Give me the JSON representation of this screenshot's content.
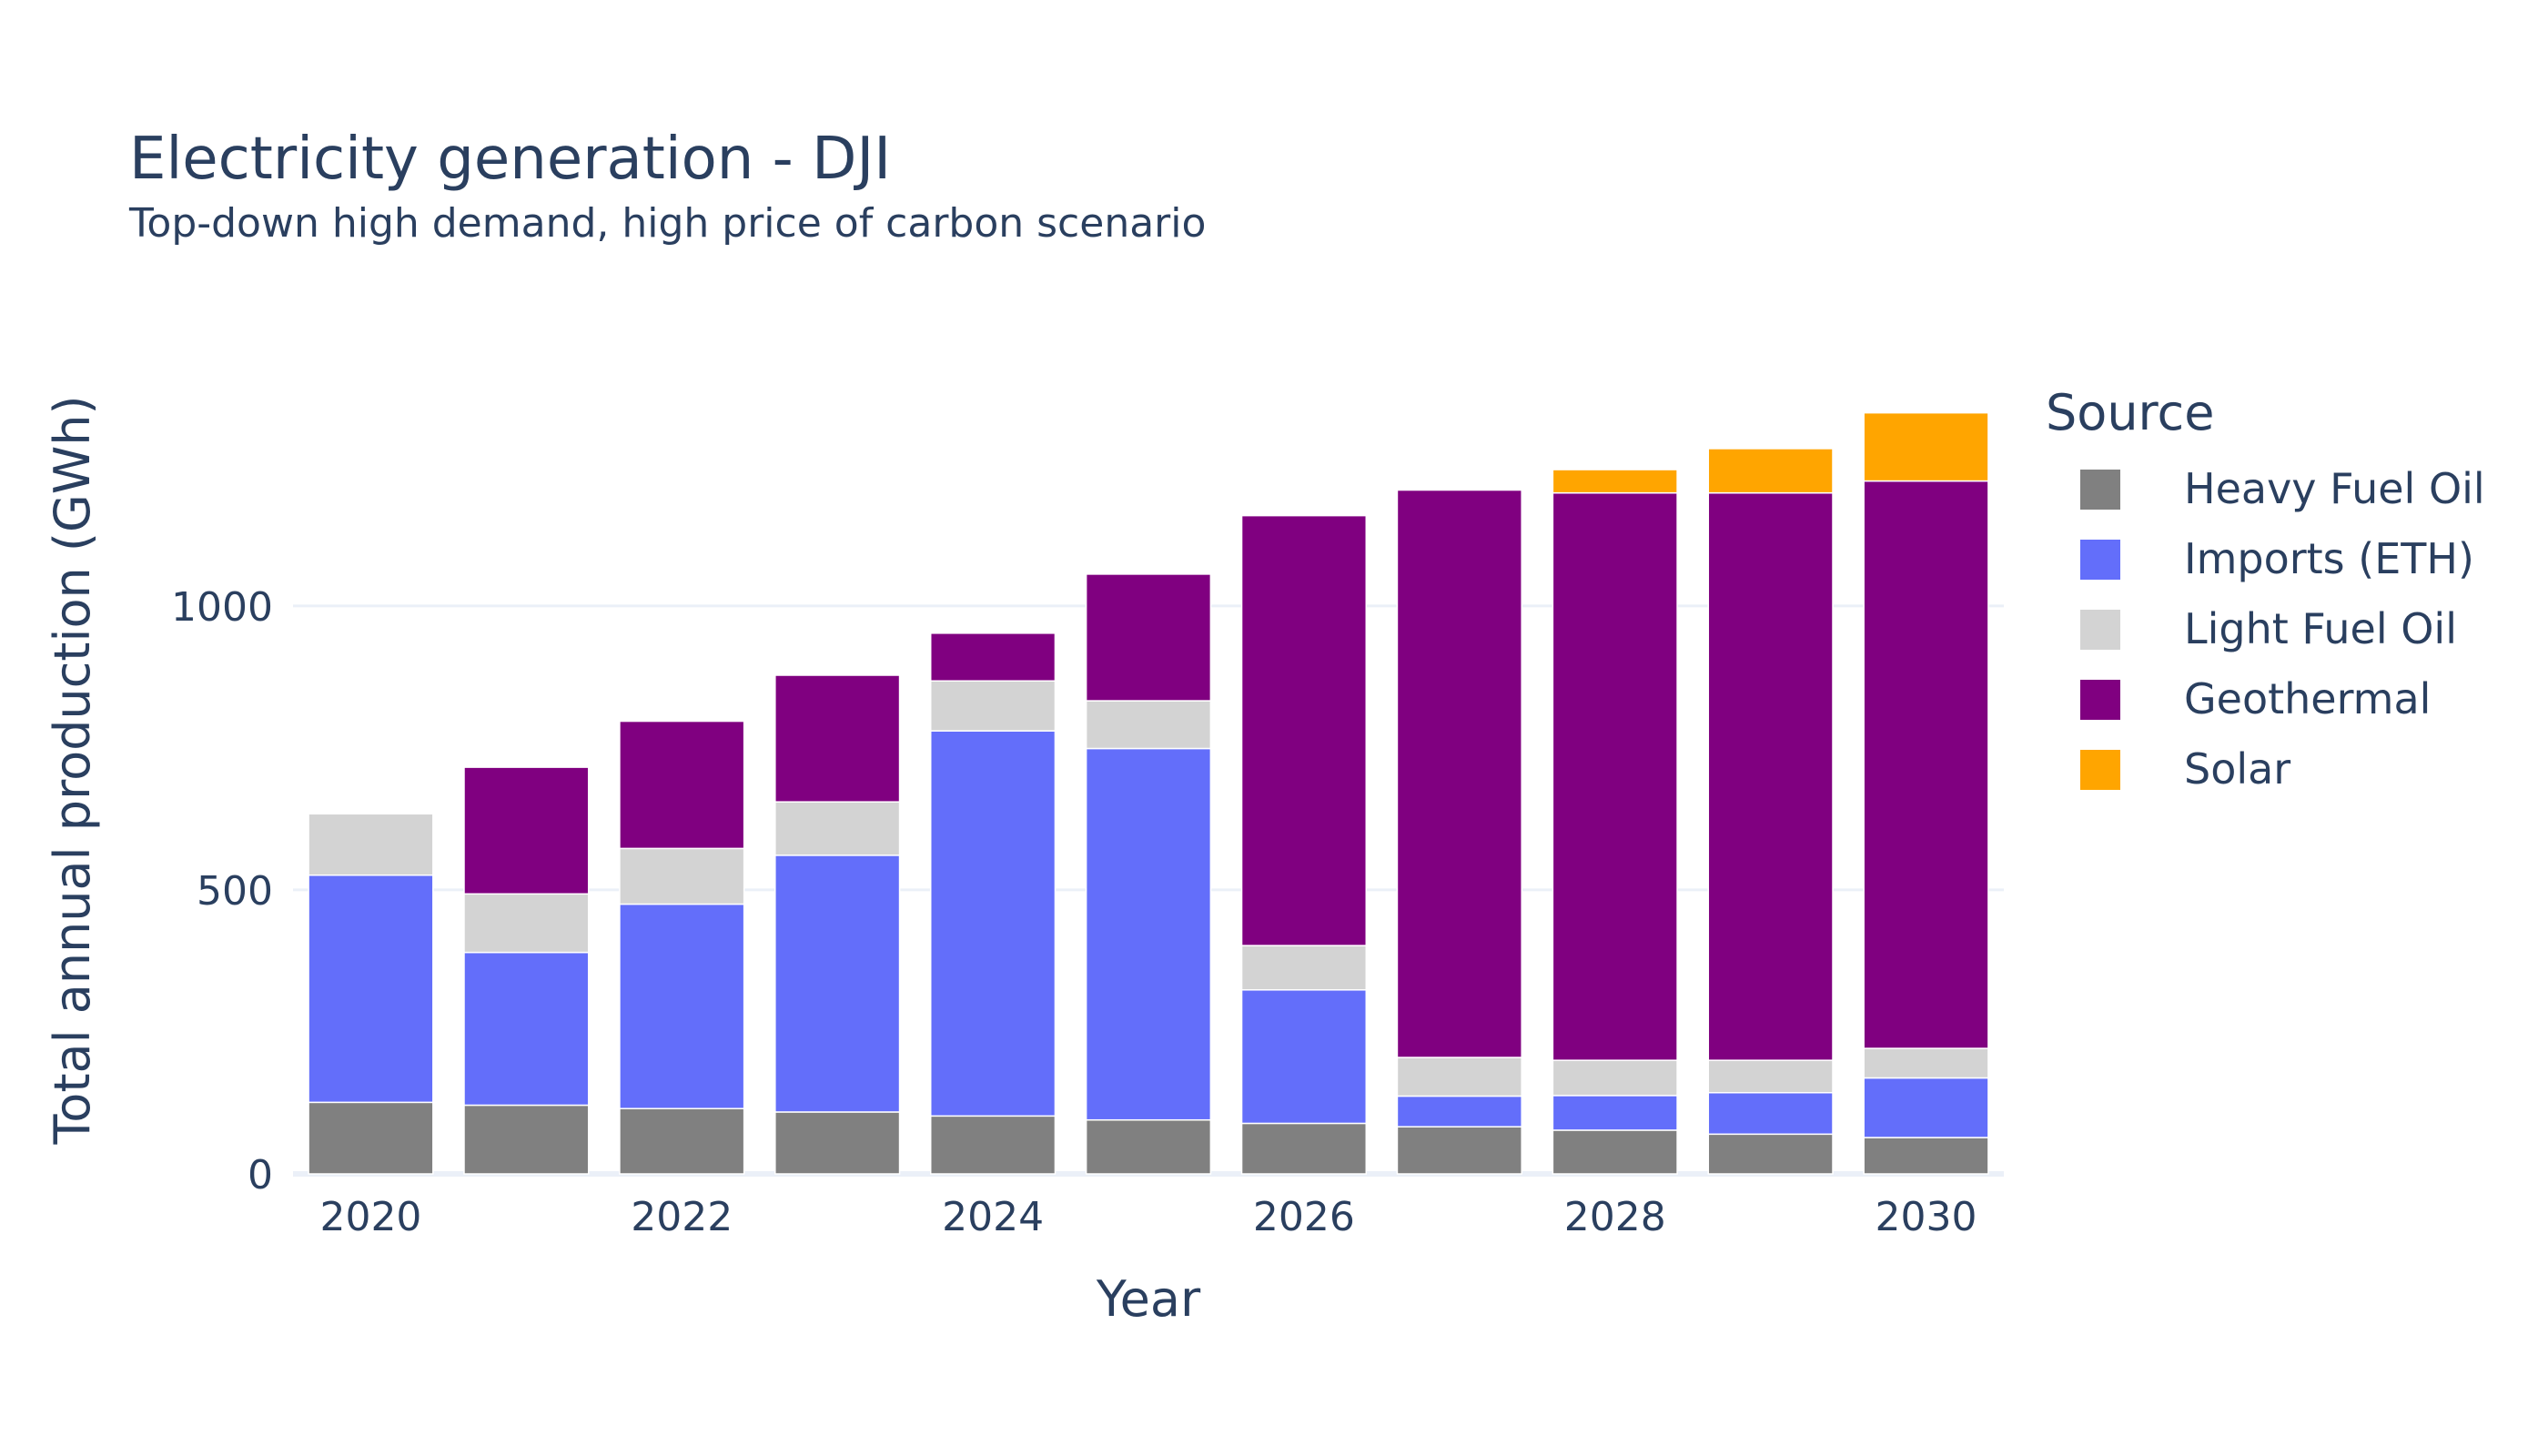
{
  "chart_data": {
    "type": "bar",
    "stacked": true,
    "title": "Electricity generation - DJI",
    "subtitle": "Top-down high demand, high price of carbon scenario",
    "xlabel": "Year",
    "ylabel": "Total annual production (GWh)",
    "x": [
      2020,
      2021,
      2022,
      2023,
      2024,
      2025,
      2026,
      2027,
      2028,
      2029,
      2030
    ],
    "x_tick_labels": [
      "2020",
      "2022",
      "2024",
      "2026",
      "2028",
      "2030"
    ],
    "x_tick_values": [
      2020,
      2022,
      2024,
      2026,
      2028,
      2030
    ],
    "y_tick_labels": [
      "0",
      "500",
      "1000"
    ],
    "y_tick_values": [
      0,
      500,
      1000
    ],
    "ylim": [
      0,
      1450
    ],
    "grid": "y",
    "legend": {
      "title": "Source",
      "position": "right"
    },
    "series": [
      {
        "name": "Heavy Fuel Oil",
        "color": "#808080",
        "values": [
          126,
          121,
          115,
          109,
          102,
          95,
          89,
          83,
          77,
          70,
          64
        ]
      },
      {
        "name": "Imports (ETH)",
        "color": "#636efa",
        "values": [
          400,
          269,
          360,
          452,
          678,
          654,
          235,
          54,
          61,
          73,
          105
        ]
      },
      {
        "name": "Light Fuel Oil",
        "color": "#d3d3d3",
        "values": [
          108,
          103,
          98,
          94,
          88,
          84,
          78,
          68,
          62,
          57,
          52
        ]
      },
      {
        "name": "Geothermal",
        "color": "#800080",
        "values": [
          0,
          223,
          224,
          223,
          84,
          223,
          757,
          999,
          999,
          999,
          999
        ]
      },
      {
        "name": "Solar",
        "color": "#ffa500",
        "values": [
          0,
          0,
          0,
          0,
          0,
          0,
          0,
          0,
          41,
          78,
          120
        ]
      }
    ]
  }
}
